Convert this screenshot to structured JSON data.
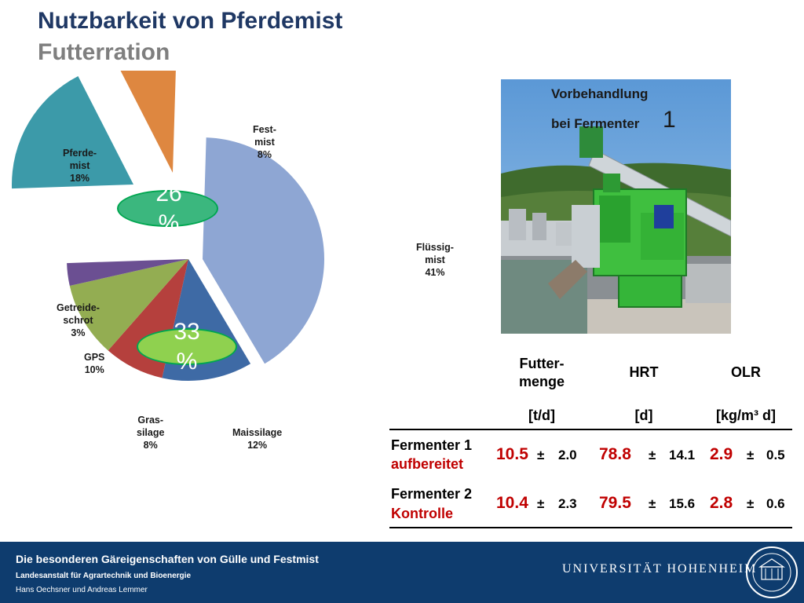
{
  "title": "Nutzbarkeit von Pferdemist",
  "subtitle": "Futterration",
  "chart_data": {
    "type": "pie",
    "slices": [
      {
        "label": "Flüssig-\nmist\n41%",
        "value": 41,
        "color": "#8ea6d3"
      },
      {
        "label": "Maissilage\n12%",
        "value": 12,
        "color": "#3e6aa5"
      },
      {
        "label": "Gras-\nsilage\n8%",
        "value": 8,
        "color": "#b5403d"
      },
      {
        "label": "GPS\n10%",
        "value": 10,
        "color": "#93ad52"
      },
      {
        "label": "Getreide-\nschrot\n3%",
        "value": 3,
        "color": "#6b4f92"
      },
      {
        "label": "Pferde-\nmist\n18%",
        "value": 18,
        "color": "#3c9aa9"
      },
      {
        "label": "Fest-\nmist\n8%",
        "value": 8,
        "color": "#de8740"
      }
    ],
    "group_labels": [
      "26\n%",
      "33\n%"
    ]
  },
  "photo": {
    "caption_line1": "Vorbehandlung",
    "caption_line2": "bei Fermenter",
    "caption_number": "1"
  },
  "table": {
    "headers": [
      "Futter-\nmenge",
      "HRT",
      "OLR"
    ],
    "units": [
      "[t/d]",
      "[d]",
      "[kg/m³ d]"
    ],
    "rows": [
      {
        "name": "Fermenter 1",
        "sub": "aufbereitet",
        "futter": "10.5",
        "futter_sd": "2.0",
        "hrt": "78.8",
        "hrt_sd": "14.1",
        "olr": "2.9",
        "olr_sd": "0.5",
        "pm": "±"
      },
      {
        "name": "Fermenter 2",
        "sub": "Kontrolle",
        "futter": "10.4",
        "futter_sd": "2.3",
        "hrt": "79.5",
        "hrt_sd": "15.6",
        "olr": "2.8",
        "olr_sd": "0.6",
        "pm": "±"
      }
    ]
  },
  "footer": {
    "line1": "Die besonderen Gäreigenschaften von Gülle und Festmist",
    "line2": "Landesanstalt für Agrartechnik und Bioenergie",
    "line3": "Hans Oechsner  und  Andreas Lemmer",
    "university": "UNIVERSITÄT HOHENHEIM"
  }
}
